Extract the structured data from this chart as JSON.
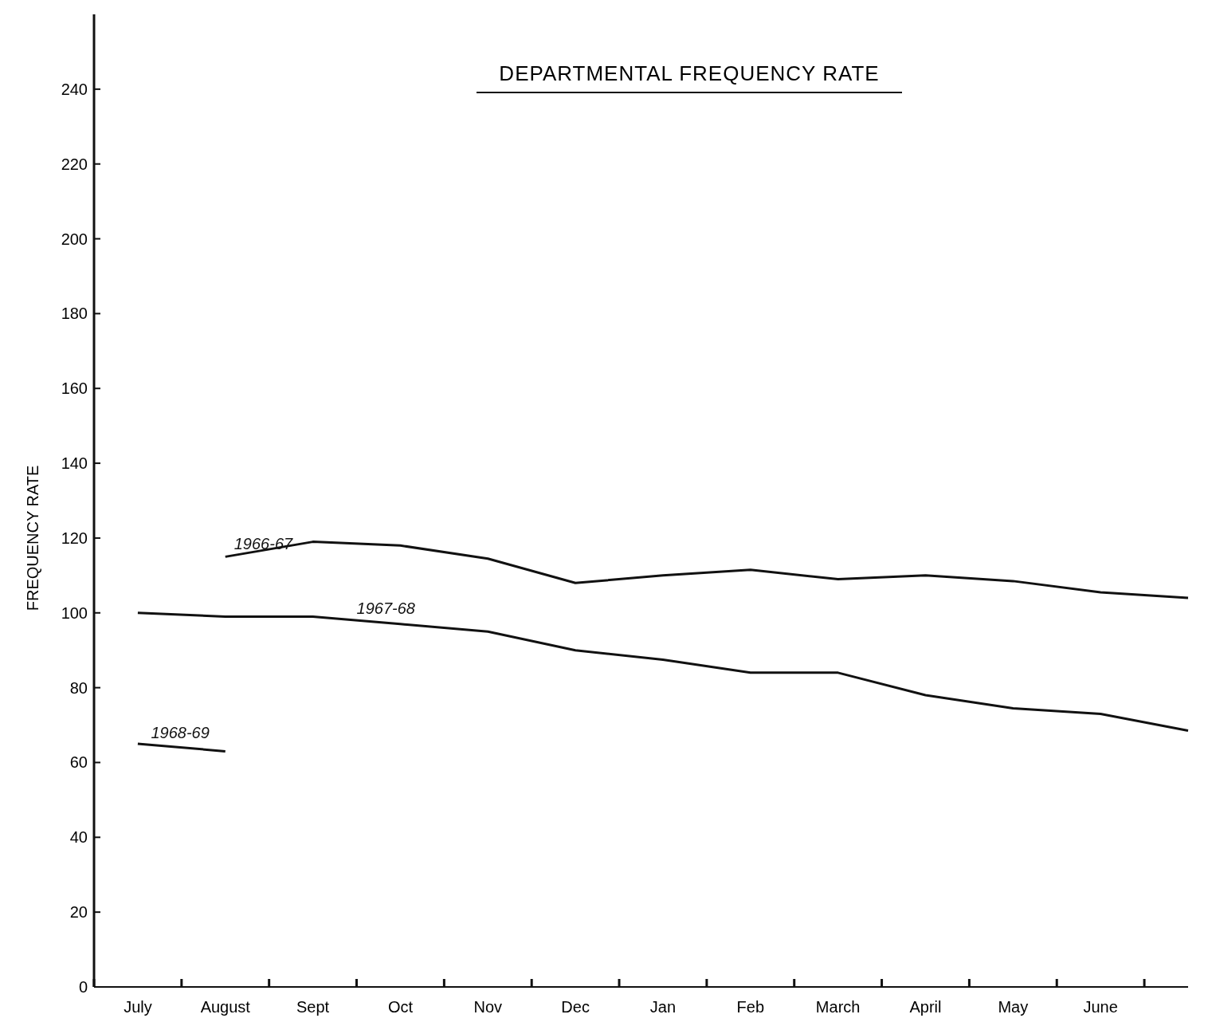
{
  "chart_data": {
    "type": "line",
    "title": "DEPARTMENTAL FREQUENCY RATE",
    "ylabel": "FREQUENCY RATE",
    "categories": [
      "July",
      "August",
      "Sept",
      "Oct",
      "Nov",
      "Dec",
      "Jan",
      "Feb",
      "March",
      "April",
      "May",
      "June",
      null
    ],
    "ylim": [
      0,
      260
    ],
    "yticks": [
      0,
      20,
      40,
      60,
      80,
      100,
      120,
      140,
      160,
      180,
      200,
      220,
      240
    ],
    "grid": false,
    "marker": "none",
    "line_style": "solid",
    "series": [
      {
        "name": "1966-67",
        "color": "#111111",
        "values": [
          null,
          115,
          119,
          118,
          114.5,
          108,
          110,
          111.5,
          109,
          110,
          108.5,
          105.5,
          104
        ]
      },
      {
        "name": "1967-68",
        "color": "#111111",
        "values": [
          100,
          99,
          99,
          97,
          95,
          90,
          87.5,
          84,
          84,
          78,
          74.5,
          73,
          68.5
        ]
      },
      {
        "name": "1968-69",
        "color": "#111111",
        "values": [
          65,
          63,
          null,
          null,
          null,
          null,
          null,
          null,
          null,
          null,
          null,
          null,
          null
        ]
      }
    ]
  }
}
